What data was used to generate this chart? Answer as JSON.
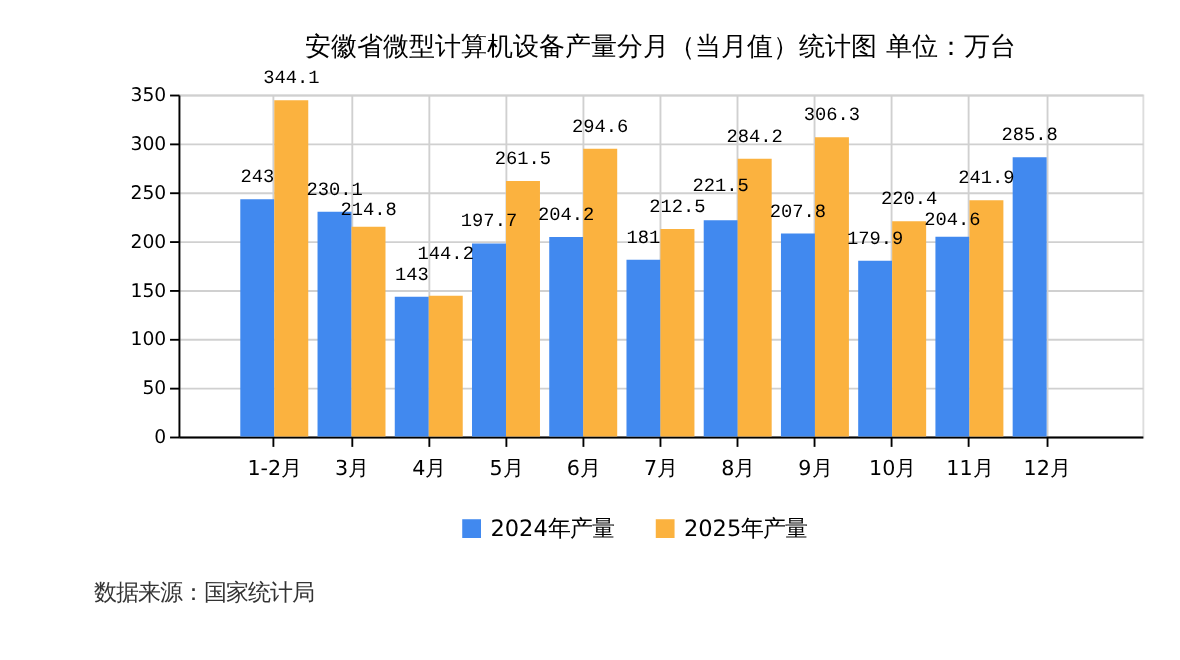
{
  "chart_data": {
    "type": "bar",
    "title": "安徽省微型计算机设备产量分月（当月值）统计图  单位：万台",
    "categories": [
      "1-2月",
      "3月",
      "4月",
      "5月",
      "6月",
      "7月",
      "8月",
      "9月",
      "10月",
      "11月",
      "12月"
    ],
    "series": [
      {
        "name": "2024年产量",
        "color": "#4189ef",
        "values": [
          243,
          230.1,
          143,
          197.7,
          204.2,
          181,
          221.5,
          207.8,
          179.9,
          204.6,
          285.8
        ]
      },
      {
        "name": "2025年产量",
        "color": "#fbb23f",
        "values": [
          344.1,
          214.8,
          144.2,
          261.5,
          294.6,
          212.5,
          284.2,
          306.3,
          220.4,
          241.9,
          null
        ]
      }
    ],
    "ylim": [
      0,
      350
    ],
    "yticks": [
      0,
      50,
      100,
      150,
      200,
      250,
      300,
      350
    ],
    "grid": true,
    "legend": "bottom",
    "data_labels": true,
    "annotations": [
      "数据来源：国家统计局"
    ]
  }
}
